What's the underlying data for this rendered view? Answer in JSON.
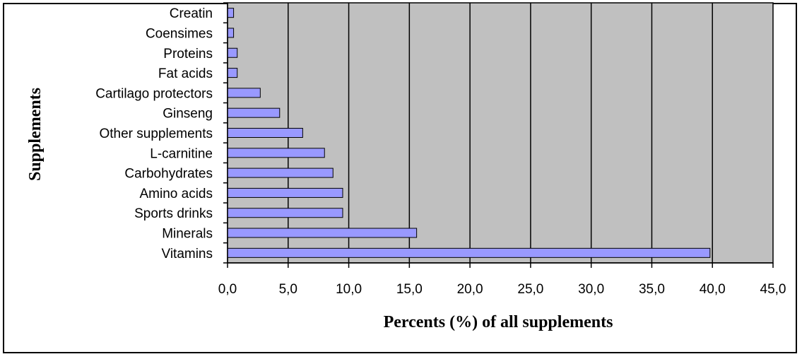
{
  "chart_data": {
    "type": "bar",
    "orientation": "horizontal",
    "categories": [
      "Creatin",
      "Coensimes",
      "Proteins",
      "Fat acids",
      "Cartilago protectors",
      "Ginseng",
      "Other supplements",
      "L-carnitine",
      "Carbohydrates",
      "Amino acids",
      "Sports drinks",
      "Minerals",
      "Vitamins"
    ],
    "values": [
      0.5,
      0.5,
      0.8,
      0.8,
      2.7,
      4.3,
      6.2,
      8.0,
      8.7,
      9.5,
      9.5,
      15.6,
      39.8
    ],
    "xlabel": "Percents (%) of all supplements",
    "ylabel": "Supplements",
    "xlim": [
      0,
      45
    ],
    "xticks": [
      0,
      5,
      10,
      15,
      20,
      25,
      30,
      35,
      40,
      45
    ],
    "xtick_labels": [
      "0,0",
      "5,0",
      "10,0",
      "15,0",
      "20,0",
      "25,0",
      "30,0",
      "35,0",
      "40,0",
      "45,0"
    ],
    "grid": "vertical",
    "colors": {
      "plot_background": "#c0c0c0",
      "bar_fill": "#9999ff",
      "bar_stroke": "#000000",
      "gridline": "#000000"
    }
  }
}
